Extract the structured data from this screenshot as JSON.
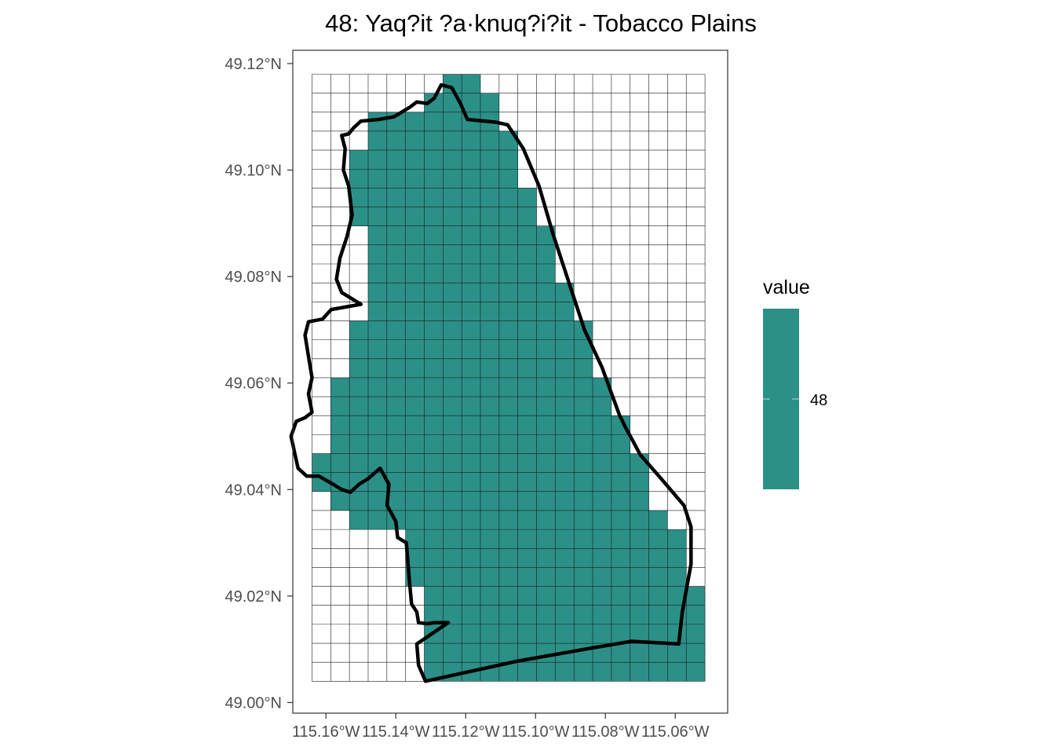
{
  "chart_data": {
    "type": "heatmap",
    "title": "48: Yaq?it ?a·knuq?i?it - Tobacco Plains",
    "xlabel": "",
    "ylabel": "",
    "xlim": [
      -115.1695,
      -115.045
    ],
    "ylim": [
      48.998,
      49.1225
    ],
    "x_ticks": [
      -115.16,
      -115.14,
      -115.12,
      -115.1,
      -115.08,
      -115.06
    ],
    "x_tick_labels": [
      "115.16°W",
      "115.14°W",
      "115.12°W",
      "115.10°W",
      "115.08°W",
      "115.06°W"
    ],
    "y_ticks": [
      49.0,
      49.02,
      49.04,
      49.06,
      49.08,
      49.1,
      49.12
    ],
    "y_tick_labels": [
      "49.00°N",
      "49.02°N",
      "49.04°N",
      "49.06°N",
      "49.08°N",
      "49.10°N",
      "49.12°N"
    ],
    "grid": {
      "x_min": -115.164,
      "x_max": -115.0515,
      "y_min": 49.004,
      "y_max": 49.118,
      "cols": 21,
      "rows": 32
    },
    "fill_rows": [
      [
        [
          7,
          8
        ]
      ],
      [
        [
          6,
          9
        ]
      ],
      [
        [
          3,
          9
        ]
      ],
      [
        [
          3,
          10
        ]
      ],
      [
        [
          2,
          10
        ]
      ],
      [
        [
          2,
          10
        ]
      ],
      [
        [
          2,
          11
        ]
      ],
      [
        [
          2,
          11
        ]
      ],
      [
        [
          3,
          12
        ]
      ],
      [
        [
          3,
          12
        ]
      ],
      [
        [
          3,
          12
        ]
      ],
      [
        [
          3,
          13
        ]
      ],
      [
        [
          3,
          13
        ]
      ],
      [
        [
          2,
          14
        ]
      ],
      [
        [
          2,
          14
        ]
      ],
      [
        [
          2,
          14
        ]
      ],
      [
        [
          1,
          15
        ]
      ],
      [
        [
          1,
          15
        ]
      ],
      [
        [
          1,
          16
        ]
      ],
      [
        [
          1,
          16
        ]
      ],
      [
        [
          0,
          17
        ]
      ],
      [
        [
          0,
          17
        ]
      ],
      [
        [
          1,
          17
        ]
      ],
      [
        [
          2,
          4
        ],
        [
          5,
          18
        ]
      ],
      [
        [
          5,
          19
        ]
      ],
      [
        [
          5,
          19
        ]
      ],
      [
        [
          5,
          19
        ]
      ],
      [
        [
          6,
          20
        ]
      ],
      [
        [
          6,
          20
        ]
      ],
      [
        [
          6,
          20
        ]
      ],
      [
        [
          6,
          20
        ]
      ],
      [
        [
          6,
          20
        ]
      ]
    ],
    "outline": [
      [
        -115.1315,
        49.004
      ],
      [
        -115.105,
        49.0078
      ],
      [
        -115.086,
        49.01
      ],
      [
        -115.0725,
        49.0115
      ],
      [
        -115.059,
        49.011
      ],
      [
        -115.058,
        49.017
      ],
      [
        -115.0555,
        49.026
      ],
      [
        -115.0555,
        49.033
      ],
      [
        -115.0575,
        49.037
      ],
      [
        -115.064,
        49.042
      ],
      [
        -115.07,
        49.0465
      ],
      [
        -115.0745,
        49.052
      ],
      [
        -115.076,
        49.054
      ],
      [
        -115.081,
        49.063
      ],
      [
        -115.086,
        49.07
      ],
      [
        -115.0905,
        49.079
      ],
      [
        -115.095,
        49.088
      ],
      [
        -115.099,
        49.097
      ],
      [
        -115.1035,
        49.104
      ],
      [
        -115.108,
        49.1085
      ],
      [
        -115.1115,
        49.109
      ],
      [
        -115.1195,
        49.1095
      ],
      [
        -115.1215,
        49.1125
      ],
      [
        -115.124,
        49.1155
      ],
      [
        -115.127,
        49.116
      ],
      [
        -115.129,
        49.1135
      ],
      [
        -115.131,
        49.1125
      ],
      [
        -115.134,
        49.1128
      ],
      [
        -115.136,
        49.1118
      ],
      [
        -115.1405,
        49.11
      ],
      [
        -115.145,
        49.1095
      ],
      [
        -115.15,
        49.1092
      ],
      [
        -115.152,
        49.108
      ],
      [
        -115.1535,
        49.1068
      ],
      [
        -115.1555,
        49.1065
      ],
      [
        -115.1545,
        49.104
      ],
      [
        -115.155,
        49.1
      ],
      [
        -115.1535,
        49.097
      ],
      [
        -115.1525,
        49.0915
      ],
      [
        -115.154,
        49.0875
      ],
      [
        -115.156,
        49.0835
      ],
      [
        -115.157,
        49.0795
      ],
      [
        -115.1555,
        49.077
      ],
      [
        -115.15,
        49.0748
      ],
      [
        -115.1585,
        49.0738
      ],
      [
        -115.161,
        49.072
      ],
      [
        -115.165,
        49.0715
      ],
      [
        -115.166,
        49.069
      ],
      [
        -115.165,
        49.065
      ],
      [
        -115.164,
        49.061
      ],
      [
        -115.165,
        49.058
      ],
      [
        -115.164,
        49.0545
      ],
      [
        -115.166,
        49.0535
      ],
      [
        -115.1685,
        49.0528
      ],
      [
        -115.17,
        49.05
      ],
      [
        -115.169,
        49.047
      ],
      [
        -115.168,
        49.044
      ],
      [
        -115.1655,
        49.0425
      ],
      [
        -115.162,
        49.0425
      ],
      [
        -115.158,
        49.041
      ],
      [
        -115.1555,
        49.04
      ],
      [
        -115.153,
        49.0395
      ],
      [
        -115.1505,
        49.041
      ],
      [
        -115.148,
        49.042
      ],
      [
        -115.1445,
        49.044
      ],
      [
        -115.142,
        49.041
      ],
      [
        -115.1425,
        49.037
      ],
      [
        -115.14,
        49.034
      ],
      [
        -115.1395,
        49.031
      ],
      [
        -115.137,
        49.03
      ],
      [
        -115.1365,
        49.026
      ],
      [
        -115.136,
        49.022
      ],
      [
        -115.1355,
        49.0185
      ],
      [
        -115.134,
        49.017
      ],
      [
        -115.1335,
        49.015
      ],
      [
        -115.131,
        49.0148
      ],
      [
        -115.129,
        49.015
      ],
      [
        -115.125,
        49.015
      ],
      [
        -115.134,
        49.011
      ],
      [
        -115.1335,
        49.007
      ],
      [
        -115.1315,
        49.004
      ]
    ],
    "legend": {
      "title": "value",
      "placement": "right",
      "labels": [
        "48"
      ]
    },
    "colors": {
      "fill": "#2a9088",
      "grid_line": "#1a1a1a",
      "outline": "#000000",
      "panel_border": "#333333"
    }
  }
}
